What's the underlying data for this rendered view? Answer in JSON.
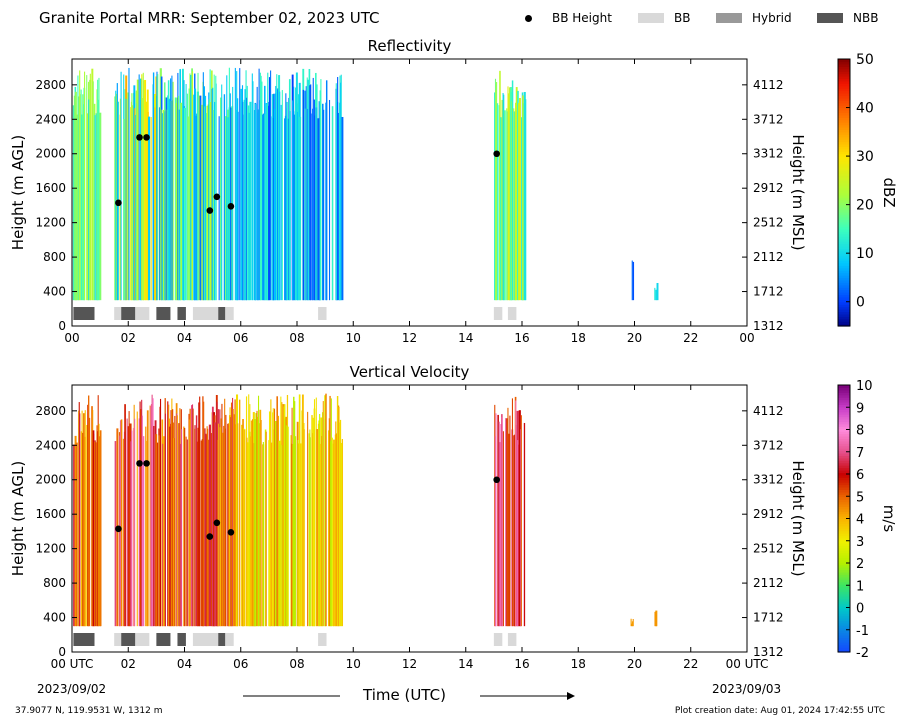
{
  "header": {
    "title": "Granite Portal MRR:  September 02, 2023 UTC"
  },
  "legend": [
    {
      "label": "BB Height",
      "kind": "dot",
      "color": "#000000"
    },
    {
      "label": "BB",
      "kind": "swatch",
      "color": "#d9d9d9"
    },
    {
      "label": "Hybrid",
      "kind": "swatch",
      "color": "#999999"
    },
    {
      "label": "NBB",
      "kind": "swatch",
      "color": "#555555"
    }
  ],
  "footer": {
    "location": "37.9077 N, 119.9531 W, 1312 m",
    "created": "Plot creation date: Aug 01, 2024 17:42:55 UTC",
    "start_date": "2023/09/02",
    "end_date": "2023/09/03",
    "xlabel": "Time (UTC)"
  },
  "chart_data": [
    {
      "type": "heatmap",
      "title": "Reflectivity",
      "ylabel": "Height (m AGL)",
      "y2label": "Height (m MSL)",
      "xlim": [
        0,
        24
      ],
      "ylim": [
        0,
        3100
      ],
      "x_ticks": [
        "00",
        "02",
        "04",
        "06",
        "08",
        "10",
        "12",
        "14",
        "16",
        "18",
        "20",
        "22",
        "00"
      ],
      "y_ticks": [
        0,
        400,
        800,
        1200,
        1600,
        2000,
        2400,
        2800
      ],
      "y2_ticks": [
        1312,
        1712,
        2112,
        2512,
        2912,
        3312,
        3712,
        4112
      ],
      "colorbar": {
        "label": "dBZ",
        "range": [
          -5,
          50
        ],
        "ticks": [
          0,
          10,
          20,
          30,
          40,
          50
        ]
      },
      "bb_height_points": [
        {
          "x": 1.65,
          "y": 1430
        },
        {
          "x": 2.4,
          "y": 2190
        },
        {
          "x": 2.65,
          "y": 2190
        },
        {
          "x": 4.9,
          "y": 1340
        },
        {
          "x": 5.15,
          "y": 1500
        },
        {
          "x": 5.65,
          "y": 1390
        },
        {
          "x": 15.1,
          "y": 2000
        }
      ],
      "precip_type_bands": [
        {
          "type": "NBB",
          "start": 0.05,
          "end": 0.8
        },
        {
          "type": "BB",
          "start": 1.5,
          "end": 1.75
        },
        {
          "type": "NBB",
          "start": 1.75,
          "end": 2.25
        },
        {
          "type": "BB",
          "start": 2.25,
          "end": 2.75
        },
        {
          "type": "NBB",
          "start": 3.0,
          "end": 3.5
        },
        {
          "type": "NBB",
          "start": 3.75,
          "end": 4.05
        },
        {
          "type": "BB",
          "start": 4.3,
          "end": 5.2
        },
        {
          "type": "NBB",
          "start": 5.2,
          "end": 5.45
        },
        {
          "type": "BB",
          "start": 5.45,
          "end": 5.75
        },
        {
          "type": "BB",
          "start": 8.75,
          "end": 9.05
        },
        {
          "type": "BB",
          "start": 15.0,
          "end": 15.3
        },
        {
          "type": "BB",
          "start": 15.5,
          "end": 15.8
        }
      ],
      "echo_regions": [
        {
          "start": 0.0,
          "end": 1.0,
          "top": 3000,
          "low": 10,
          "high": 25
        },
        {
          "start": 1.5,
          "end": 3.0,
          "top": 3000,
          "low": 5,
          "high": 35
        },
        {
          "start": 3.0,
          "end": 5.8,
          "top": 3000,
          "low": 2,
          "high": 25
        },
        {
          "start": 5.8,
          "end": 9.6,
          "top": 3000,
          "low": 0,
          "high": 15
        },
        {
          "start": 15.0,
          "end": 16.1,
          "top": 3000,
          "low": 10,
          "high": 28
        },
        {
          "start": 19.85,
          "end": 19.95,
          "top": 800,
          "low": 0,
          "high": 5
        },
        {
          "start": 20.7,
          "end": 20.8,
          "top": 500,
          "low": 8,
          "high": 12
        }
      ]
    },
    {
      "type": "heatmap",
      "title": "Vertical Velocity",
      "ylabel": "Height (m AGL)",
      "y2label": "Height (m MSL)",
      "xlim": [
        0,
        24
      ],
      "ylim": [
        0,
        3100
      ],
      "x_ticks": [
        "00 UTC",
        "02",
        "04",
        "06",
        "08",
        "10",
        "12",
        "14",
        "16",
        "18",
        "20",
        "22",
        "00 UTC"
      ],
      "y_ticks": [
        0,
        400,
        800,
        1200,
        1600,
        2000,
        2400,
        2800
      ],
      "y2_ticks": [
        1312,
        1712,
        2112,
        2512,
        2912,
        3312,
        3712,
        4112
      ],
      "colorbar": {
        "label": "m/s",
        "range": [
          -2,
          10
        ],
        "ticks": [
          -2,
          -1,
          0,
          1,
          2,
          3,
          4,
          5,
          6,
          7,
          8,
          9,
          10
        ]
      },
      "bb_height_points": [
        {
          "x": 1.65,
          "y": 1430
        },
        {
          "x": 2.4,
          "y": 2190
        },
        {
          "x": 2.65,
          "y": 2190
        },
        {
          "x": 4.9,
          "y": 1340
        },
        {
          "x": 5.15,
          "y": 1500
        },
        {
          "x": 5.65,
          "y": 1390
        },
        {
          "x": 15.1,
          "y": 2000
        }
      ],
      "precip_type_bands": [
        {
          "type": "NBB",
          "start": 0.05,
          "end": 0.8
        },
        {
          "type": "BB",
          "start": 1.5,
          "end": 1.75
        },
        {
          "type": "NBB",
          "start": 1.75,
          "end": 2.25
        },
        {
          "type": "BB",
          "start": 2.25,
          "end": 2.75
        },
        {
          "type": "NBB",
          "start": 3.0,
          "end": 3.5
        },
        {
          "type": "NBB",
          "start": 3.75,
          "end": 4.05
        },
        {
          "type": "BB",
          "start": 4.3,
          "end": 5.2
        },
        {
          "type": "NBB",
          "start": 5.2,
          "end": 5.45
        },
        {
          "type": "BB",
          "start": 5.45,
          "end": 5.75
        },
        {
          "type": "BB",
          "start": 8.75,
          "end": 9.05
        },
        {
          "type": "BB",
          "start": 15.0,
          "end": 15.3
        },
        {
          "type": "BB",
          "start": 15.5,
          "end": 15.8
        }
      ],
      "echo_regions": [
        {
          "start": 0.0,
          "end": 1.0,
          "top": 3000,
          "low": 3.5,
          "high": 6.5
        },
        {
          "start": 1.5,
          "end": 3.0,
          "top": 3000,
          "low": 4,
          "high": 8
        },
        {
          "start": 3.0,
          "end": 5.8,
          "top": 3000,
          "low": 3.5,
          "high": 7
        },
        {
          "start": 5.8,
          "end": 9.6,
          "top": 3000,
          "low": 2,
          "high": 5
        },
        {
          "start": 15.0,
          "end": 16.1,
          "top": 3000,
          "low": 5,
          "high": 8
        },
        {
          "start": 19.85,
          "end": 19.95,
          "top": 400,
          "low": 4,
          "high": 4.5
        },
        {
          "start": 20.7,
          "end": 20.8,
          "top": 500,
          "low": 4,
          "high": 4.5
        }
      ]
    }
  ]
}
